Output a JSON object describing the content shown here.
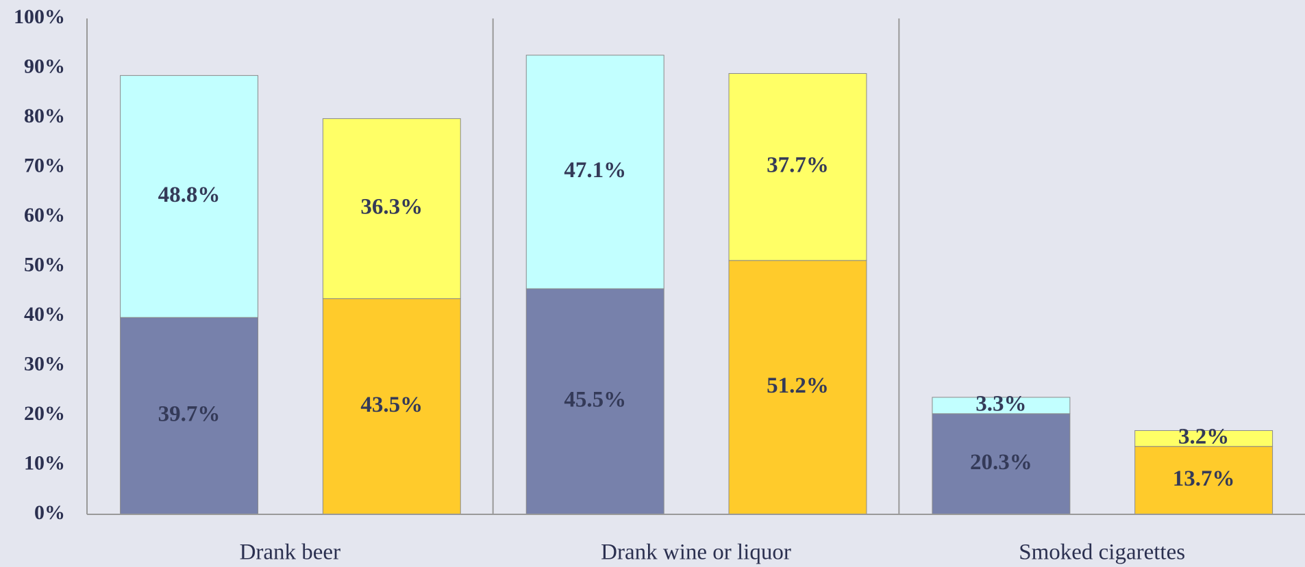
{
  "chart_data": {
    "type": "stacked_bar",
    "categories": [
      "Drank beer",
      "Drank wine or liquor",
      "Smoked cigarettes"
    ],
    "series": [
      {
        "color": "#7781ab",
        "stack": 0,
        "values": [
          39.7,
          45.5,
          20.3
        ],
        "value_labels": [
          "39.7%",
          "45.5%",
          "20.3%"
        ]
      },
      {
        "color": "#c2ffff",
        "stack": 0,
        "values": [
          48.8,
          47.1,
          3.3
        ],
        "value_labels": [
          "48.8%",
          "47.1%",
          "3.3%"
        ]
      },
      {
        "color": "#ffcb2b",
        "stack": 1,
        "values": [
          43.5,
          51.2,
          13.7
        ],
        "value_labels": [
          "43.5%",
          "51.2%",
          "13.7%"
        ]
      },
      {
        "color": "#ffff66",
        "stack": 1,
        "values": [
          36.3,
          37.7,
          3.2
        ],
        "value_labels": [
          "36.3%",
          "37.7%",
          "3.2%"
        ]
      }
    ],
    "ylim": [
      0,
      100
    ],
    "yticks": [
      {
        "value": 0,
        "label": "0%"
      },
      {
        "value": 10,
        "label": "10%"
      },
      {
        "value": 20,
        "label": "20%"
      },
      {
        "value": 30,
        "label": "30%"
      },
      {
        "value": 40,
        "label": "40%"
      },
      {
        "value": 50,
        "label": "50%"
      },
      {
        "value": 60,
        "label": "60%"
      },
      {
        "value": 70,
        "label": "70%"
      },
      {
        "value": 80,
        "label": "80%"
      },
      {
        "value": 90,
        "label": "90%"
      },
      {
        "value": 100,
        "label": "100%"
      }
    ]
  }
}
